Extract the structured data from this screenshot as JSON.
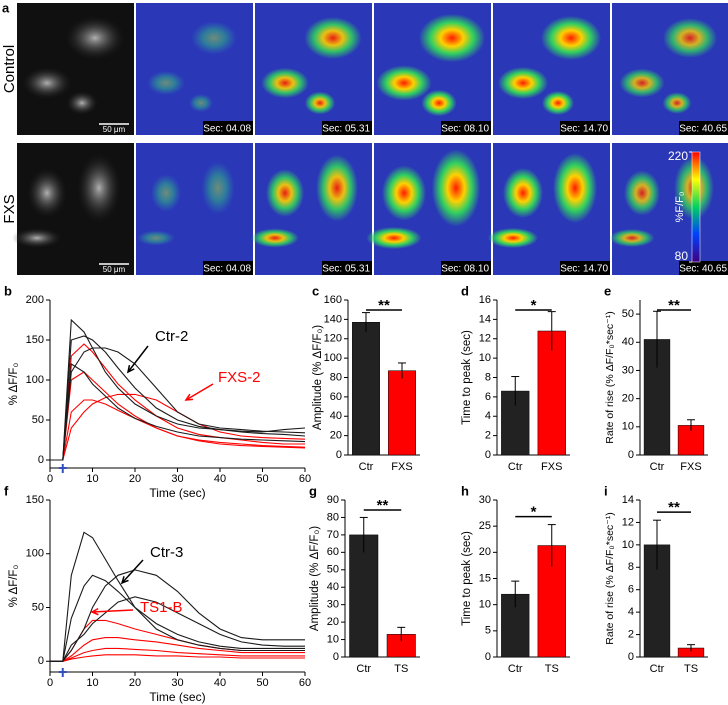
{
  "image_panel": {
    "panel_label": "a",
    "rows": [
      {
        "label": "Control",
        "scale_bar": "50 μm",
        "timestamps": [
          "Sec: 04.08",
          "Sec: 05.31",
          "Sec: 08.10",
          "Sec: 14.70",
          "Sec: 40.65"
        ]
      },
      {
        "label": "FXS",
        "scale_bar": "50 μm",
        "timestamps": [
          "Sec: 04.08",
          "Sec: 05.31",
          "Sec: 08.10",
          "Sec: 14.70",
          "Sec: 40.65"
        ]
      }
    ],
    "colorbar": {
      "label": "%F/F₀",
      "ticks": [
        80,
        220
      ]
    }
  },
  "chart_data": [
    {
      "type": "line",
      "panel_label": "b",
      "xlabel": "Time (sec)",
      "ylabel": "% ΔF/F₀",
      "x": [
        0,
        3,
        5,
        8,
        10,
        13,
        16,
        20,
        25,
        30,
        35,
        40,
        45,
        50,
        55,
        60
      ],
      "xlim": [
        0,
        60
      ],
      "xticks": [
        0,
        10,
        20,
        30,
        40,
        50,
        60
      ],
      "ylim": [
        -10,
        200
      ],
      "yticks": [
        0,
        50,
        100,
        150,
        200
      ],
      "series": [
        {
          "color": "#ff0000",
          "values": [
            0,
            0,
            130,
            145,
            135,
            115,
            95,
            75,
            55,
            40,
            32,
            28,
            25,
            22,
            20,
            20
          ]
        },
        {
          "color": "#ff0000",
          "values": [
            0,
            0,
            40,
            60,
            70,
            78,
            82,
            82,
            75,
            60,
            45,
            35,
            30,
            28,
            27,
            26
          ]
        },
        {
          "color": "#ff0000",
          "values": [
            0,
            0,
            100,
            110,
            100,
            85,
            70,
            55,
            40,
            30,
            25,
            22,
            20,
            18,
            17,
            16
          ]
        },
        {
          "color": "#ff0000",
          "values": [
            0,
            0,
            60,
            75,
            75,
            70,
            62,
            52,
            40,
            30,
            24,
            20,
            18,
            17,
            16,
            15
          ]
        },
        {
          "color": "#1a1a1a",
          "values": [
            0,
            0,
            175,
            160,
            140,
            110,
            90,
            70,
            55,
            45,
            40,
            38,
            36,
            35,
            38,
            40
          ]
        },
        {
          "color": "#1a1a1a",
          "values": [
            0,
            0,
            150,
            155,
            150,
            135,
            115,
            90,
            65,
            50,
            42,
            38,
            35,
            33,
            32,
            30
          ]
        },
        {
          "color": "#1a1a1a",
          "values": [
            0,
            0,
            110,
            135,
            140,
            140,
            135,
            120,
            90,
            60,
            45,
            40,
            38,
            36,
            35,
            34
          ]
        },
        {
          "color": "#1a1a1a",
          "values": [
            0,
            0,
            120,
            110,
            95,
            80,
            65,
            52,
            42,
            35,
            30,
            28,
            26,
            25,
            24,
            23
          ]
        }
      ],
      "annotations": [
        {
          "text": "Ctr-2",
          "color": "#000000"
        },
        {
          "text": "FXS-2",
          "color": "#ff0000"
        }
      ]
    },
    {
      "type": "bar",
      "panel_label": "c",
      "ylabel": "Amplitude (% ΔF/F₀)",
      "categories": [
        "Ctr",
        "FXS"
      ],
      "values": [
        137,
        87
      ],
      "errors": [
        10,
        8
      ],
      "colors": [
        "#222222",
        "#ff0000"
      ],
      "significance": "**",
      "ylim": [
        0,
        160
      ],
      "yticks": [
        0,
        20,
        40,
        60,
        80,
        100,
        120,
        140,
        160
      ]
    },
    {
      "type": "bar",
      "panel_label": "d",
      "ylabel": "Time to peak (sec)",
      "categories": [
        "Ctr",
        "FXS"
      ],
      "values": [
        6.6,
        12.8
      ],
      "errors": [
        1.5,
        2
      ],
      "colors": [
        "#222222",
        "#ff0000"
      ],
      "significance": "*",
      "ylim": [
        0,
        16
      ],
      "yticks": [
        0,
        2,
        4,
        6,
        8,
        10,
        12,
        14,
        16
      ]
    },
    {
      "type": "bar",
      "panel_label": "e",
      "ylabel": "Rate of rise (% ΔF/F₀*sec⁻¹)",
      "categories": [
        "Ctr",
        "FXS"
      ],
      "values": [
        41,
        10.5
      ],
      "errors": [
        10,
        2
      ],
      "colors": [
        "#222222",
        "#ff0000"
      ],
      "significance": "**",
      "ylim": [
        0,
        55
      ],
      "yticks": [
        0,
        10,
        20,
        30,
        40,
        50
      ]
    },
    {
      "type": "line",
      "panel_label": "f",
      "xlabel": "Time (sec)",
      "ylabel": "% ΔF/F₀",
      "x": [
        0,
        3,
        5,
        8,
        10,
        13,
        16,
        20,
        25,
        30,
        35,
        40,
        45,
        50,
        55,
        60
      ],
      "xlim": [
        0,
        60
      ],
      "xticks": [
        0,
        10,
        20,
        30,
        40,
        50,
        60
      ],
      "ylim": [
        -10,
        150
      ],
      "yticks": [
        0,
        50,
        100,
        150
      ],
      "series": [
        {
          "color": "#ff0000",
          "values": [
            0,
            0,
            10,
            30,
            38,
            38,
            35,
            30,
            25,
            20,
            15,
            12,
            10,
            10,
            10,
            10
          ]
        },
        {
          "color": "#ff0000",
          "values": [
            0,
            0,
            5,
            15,
            20,
            22,
            22,
            20,
            18,
            15,
            12,
            10,
            8,
            8,
            8,
            8
          ]
        },
        {
          "color": "#ff0000",
          "values": [
            0,
            0,
            3,
            8,
            10,
            12,
            12,
            11,
            10,
            8,
            7,
            6,
            5,
            5,
            5,
            5
          ]
        },
        {
          "color": "#ff0000",
          "values": [
            0,
            0,
            2,
            4,
            5,
            6,
            6,
            6,
            5,
            5,
            4,
            4,
            3,
            3,
            3,
            3
          ]
        },
        {
          "color": "#1a1a1a",
          "values": [
            0,
            0,
            80,
            120,
            115,
            95,
            75,
            50,
            30,
            20,
            15,
            12,
            10,
            10,
            10,
            10
          ]
        },
        {
          "color": "#1a1a1a",
          "values": [
            0,
            0,
            10,
            30,
            50,
            70,
            80,
            85,
            80,
            65,
            45,
            30,
            22,
            20,
            20,
            20
          ]
        },
        {
          "color": "#1a1a1a",
          "values": [
            0,
            0,
            40,
            70,
            80,
            75,
            65,
            50,
            35,
            25,
            18,
            14,
            12,
            12,
            12,
            12
          ]
        },
        {
          "color": "#1a1a1a",
          "values": [
            0,
            0,
            15,
            25,
            35,
            45,
            55,
            60,
            55,
            45,
            35,
            25,
            18,
            15,
            14,
            14
          ]
        }
      ],
      "annotations": [
        {
          "text": "Ctr-3",
          "color": "#000000"
        },
        {
          "text": "TS1-B",
          "color": "#ff0000"
        }
      ]
    },
    {
      "type": "bar",
      "panel_label": "g",
      "ylabel": "Amplitude (% ΔF/F₀)",
      "categories": [
        "Ctr",
        "TS"
      ],
      "values": [
        70,
        13
      ],
      "errors": [
        10,
        4
      ],
      "colors": [
        "#222222",
        "#ff0000"
      ],
      "significance": "**",
      "ylim": [
        0,
        90
      ],
      "yticks": [
        0,
        10,
        20,
        30,
        40,
        50,
        60,
        70,
        80,
        90
      ]
    },
    {
      "type": "bar",
      "panel_label": "h",
      "ylabel": "Time to peak (sec)",
      "categories": [
        "Ctr",
        "TS"
      ],
      "values": [
        12,
        21.3
      ],
      "errors": [
        2.5,
        4
      ],
      "colors": [
        "#222222",
        "#ff0000"
      ],
      "significance": "*",
      "ylim": [
        0,
        30
      ],
      "yticks": [
        0,
        5,
        10,
        15,
        20,
        25,
        30
      ]
    },
    {
      "type": "bar",
      "panel_label": "i",
      "ylabel": "Rate of rise (% ΔF/F₀*sec⁻¹)",
      "categories": [
        "Ctr",
        "TS"
      ],
      "values": [
        10,
        0.8
      ],
      "errors": [
        2.2,
        0.3
      ],
      "colors": [
        "#222222",
        "#ff0000"
      ],
      "significance": "**",
      "ylim": [
        0,
        14
      ],
      "yticks": [
        0,
        2,
        4,
        6,
        8,
        10,
        12,
        14
      ]
    }
  ]
}
